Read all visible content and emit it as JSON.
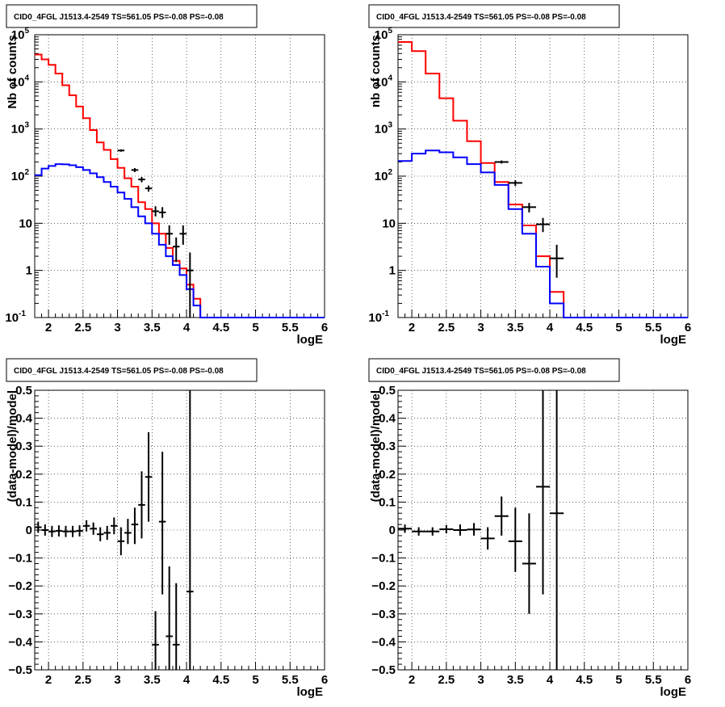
{
  "chart_data": [
    {
      "type": "step-histogram",
      "title": "CID0_4FGL J1513.4-2549 TS=561.05 PS=-0.08 PS=-0.08",
      "xlabel": "logE",
      "ylabel": "Nb of counts",
      "xlim": [
        1.8,
        6
      ],
      "ylim": [
        0.1,
        100000
      ],
      "yscale": "log",
      "grid": true,
      "x_ticks": [
        "2",
        "2.5",
        "3",
        "3.5",
        "4",
        "4.5",
        "5",
        "5.5",
        "6"
      ],
      "y_ticks": [
        {
          "value": 0.1,
          "label": "10",
          "exp": "-1"
        },
        {
          "value": 1,
          "label": "1",
          "exp": ""
        },
        {
          "value": 10,
          "label": "10",
          "exp": ""
        },
        {
          "value": 100,
          "label": "10",
          "exp": "2"
        },
        {
          "value": 1000,
          "label": "10",
          "exp": "3"
        },
        {
          "value": 10000,
          "label": "10",
          "exp": "4"
        },
        {
          "value": 100000,
          "label": "10",
          "exp": "5"
        }
      ],
      "bin_edges": [
        1.8,
        1.9,
        2.0,
        2.1,
        2.2,
        2.3,
        2.4,
        2.5,
        2.6,
        2.7,
        2.8,
        2.9,
        3.0,
        3.1,
        3.2,
        3.3,
        3.4,
        3.5,
        3.6,
        3.7,
        3.8,
        3.9,
        4.0,
        4.1,
        4.2,
        4.3,
        4.4,
        4.5,
        4.6,
        4.7,
        4.8,
        4.9,
        5.0,
        5.1,
        5.2,
        5.3,
        5.4,
        5.5,
        5.6,
        5.7,
        5.8,
        5.9,
        6.0
      ],
      "series": [
        {
          "color": "#ff0000",
          "values": [
            38000,
            30000,
            23000,
            15000,
            8500,
            5200,
            3000,
            1700,
            950,
            520,
            360,
            230,
            150,
            90,
            60,
            28,
            20,
            10,
            6,
            3,
            1.6,
            1.1,
            0.5,
            0.25,
            0.1,
            0.1,
            0.1,
            0.1,
            0.1,
            0.1,
            0.1,
            0.1,
            0.1,
            0.1,
            0.1,
            0.1,
            0.1,
            0.1,
            0.1,
            0.1,
            0.1,
            0.1
          ]
        },
        {
          "color": "#0000ff",
          "values": [
            105,
            145,
            165,
            180,
            178,
            170,
            155,
            135,
            115,
            95,
            75,
            60,
            45,
            33,
            22,
            14,
            10,
            6,
            3.5,
            2,
            1.3,
            0.8,
            0.4,
            0.18,
            0.1,
            0.1,
            0.1,
            0.1,
            0.1,
            0.1,
            0.1,
            0.1,
            0.1,
            0.1,
            0.1,
            0.1,
            0.1,
            0.1,
            0.1,
            0.1,
            0.1,
            0.1
          ]
        }
      ],
      "points": [
        {
          "x": 3.05,
          "xerr": 0.05,
          "y": 350,
          "ylo": 330,
          "yhi": 370
        },
        {
          "x": 3.25,
          "xerr": 0.05,
          "y": 135,
          "ylo": 122,
          "yhi": 148
        },
        {
          "x": 3.35,
          "xerr": 0.05,
          "y": 85,
          "ylo": 74,
          "yhi": 96
        },
        {
          "x": 3.45,
          "xerr": 0.05,
          "y": 55,
          "ylo": 47,
          "yhi": 63
        },
        {
          "x": 3.55,
          "xerr": 0.05,
          "y": 18,
          "ylo": 14,
          "yhi": 23
        },
        {
          "x": 3.65,
          "xerr": 0.05,
          "y": 17,
          "ylo": 13,
          "yhi": 22
        },
        {
          "x": 3.75,
          "xerr": 0.05,
          "y": 6,
          "ylo": 3.5,
          "yhi": 9
        },
        {
          "x": 3.85,
          "xerr": 0.05,
          "y": 3.2,
          "ylo": 1.5,
          "yhi": 5
        },
        {
          "x": 3.95,
          "xerr": 0.05,
          "y": 6,
          "ylo": 3.5,
          "yhi": 9
        },
        {
          "x": 4.05,
          "xerr": 0.05,
          "y": 1,
          "ylo": 0.1,
          "yhi": 2.4
        }
      ]
    },
    {
      "type": "step-histogram",
      "title": "CID0_4FGL J1513.4-2549 TS=561.05 PS=-0.08 PS=-0.08",
      "xlabel": "logE",
      "ylabel": "nb of counts",
      "xlim": [
        1.8,
        6
      ],
      "ylim": [
        0.1,
        100000
      ],
      "yscale": "log",
      "grid": true,
      "x_ticks": [
        "2",
        "2.5",
        "3",
        "3.5",
        "4",
        "4.5",
        "5",
        "5.5",
        "6"
      ],
      "y_ticks": [
        {
          "value": 0.1,
          "label": "10",
          "exp": "-1"
        },
        {
          "value": 1,
          "label": "1",
          "exp": ""
        },
        {
          "value": 10,
          "label": "10",
          "exp": ""
        },
        {
          "value": 100,
          "label": "10",
          "exp": "2"
        },
        {
          "value": 1000,
          "label": "10",
          "exp": "3"
        },
        {
          "value": 10000,
          "label": "10",
          "exp": "4"
        },
        {
          "value": 100000,
          "label": "10",
          "exp": "5"
        }
      ],
      "bin_edges": [
        1.8,
        2.0,
        2.2,
        2.4,
        2.6,
        2.8,
        3.0,
        3.2,
        3.4,
        3.6,
        3.8,
        4.0,
        4.2,
        4.4,
        4.6,
        4.8,
        5.0,
        5.2,
        5.4,
        5.6,
        5.8,
        6.0
      ],
      "series": [
        {
          "color": "#ff0000",
          "values": [
            70000,
            45000,
            15000,
            4500,
            1500,
            550,
            190,
            75,
            25,
            9,
            2,
            0.35,
            0.1,
            0.1,
            0.1,
            0.1,
            0.1,
            0.1,
            0.1,
            0.1,
            0.1
          ]
        },
        {
          "color": "#0000ff",
          "values": [
            210,
            300,
            350,
            320,
            250,
            180,
            120,
            65,
            20,
            6,
            1.2,
            0.2,
            0.1,
            0.1,
            0.1,
            0.1,
            0.1,
            0.1,
            0.1,
            0.1,
            0.1
          ]
        }
      ],
      "points": [
        {
          "x": 3.3,
          "xerr": 0.1,
          "y": 200,
          "ylo": 185,
          "yhi": 215
        },
        {
          "x": 3.5,
          "xerr": 0.1,
          "y": 72,
          "ylo": 62,
          "yhi": 82
        },
        {
          "x": 3.7,
          "xerr": 0.1,
          "y": 22,
          "ylo": 17,
          "yhi": 27
        },
        {
          "x": 3.9,
          "xerr": 0.1,
          "y": 9.5,
          "ylo": 6.5,
          "yhi": 13
        },
        {
          "x": 4.1,
          "xerr": 0.1,
          "y": 1.8,
          "ylo": 0.7,
          "yhi": 3.5
        }
      ]
    },
    {
      "type": "scatter",
      "title": "CID0_4FGL J1513.4-2549 TS=561.05 PS=-0.08 PS=-0.08",
      "xlabel": "logE",
      "ylabel": "(data-model)/model",
      "xlim": [
        1.8,
        6
      ],
      "ylim": [
        -0.5,
        0.5
      ],
      "yscale": "linear",
      "grid": true,
      "x_ticks": [
        "2",
        "2.5",
        "3",
        "3.5",
        "4",
        "4.5",
        "5",
        "5.5",
        "6"
      ],
      "y_ticks": [
        {
          "value": -0.5,
          "label": "−0.5",
          "exp": ""
        },
        {
          "value": -0.4,
          "label": "−0.4",
          "exp": ""
        },
        {
          "value": -0.3,
          "label": "−0.3",
          "exp": ""
        },
        {
          "value": -0.2,
          "label": "−0.2",
          "exp": ""
        },
        {
          "value": -0.1,
          "label": "−0.1",
          "exp": ""
        },
        {
          "value": 0,
          "label": "0",
          "exp": ""
        },
        {
          "value": 0.1,
          "label": "0.1",
          "exp": ""
        },
        {
          "value": 0.2,
          "label": "0.2",
          "exp": ""
        },
        {
          "value": 0.3,
          "label": "0.3",
          "exp": ""
        },
        {
          "value": 0.4,
          "label": "0.4",
          "exp": ""
        },
        {
          "value": 0.5,
          "label": "0.5",
          "exp": ""
        }
      ],
      "points": [
        {
          "x": 1.85,
          "xerr": 0.05,
          "y": 0.01,
          "ylo": -0.01,
          "yhi": 0.03
        },
        {
          "x": 1.95,
          "xerr": 0.05,
          "y": 0.0,
          "ylo": -0.02,
          "yhi": 0.02
        },
        {
          "x": 2.05,
          "xerr": 0.05,
          "y": -0.005,
          "ylo": -0.025,
          "yhi": 0.015
        },
        {
          "x": 2.15,
          "xerr": 0.05,
          "y": -0.003,
          "ylo": -0.023,
          "yhi": 0.017
        },
        {
          "x": 2.25,
          "xerr": 0.05,
          "y": -0.005,
          "ylo": -0.025,
          "yhi": 0.015
        },
        {
          "x": 2.35,
          "xerr": 0.05,
          "y": -0.005,
          "ylo": -0.025,
          "yhi": 0.015
        },
        {
          "x": 2.45,
          "xerr": 0.05,
          "y": -0.003,
          "ylo": -0.023,
          "yhi": 0.017
        },
        {
          "x": 2.55,
          "xerr": 0.05,
          "y": 0.015,
          "ylo": -0.005,
          "yhi": 0.035
        },
        {
          "x": 2.65,
          "xerr": 0.05,
          "y": 0.005,
          "ylo": -0.017,
          "yhi": 0.027
        },
        {
          "x": 2.75,
          "xerr": 0.05,
          "y": -0.015,
          "ylo": -0.04,
          "yhi": 0.01
        },
        {
          "x": 2.85,
          "xerr": 0.05,
          "y": -0.01,
          "ylo": -0.035,
          "yhi": 0.015
        },
        {
          "x": 2.95,
          "xerr": 0.05,
          "y": 0.015,
          "ylo": -0.015,
          "yhi": 0.045
        },
        {
          "x": 3.05,
          "xerr": 0.05,
          "y": -0.04,
          "ylo": -0.09,
          "yhi": 0.01
        },
        {
          "x": 3.15,
          "xerr": 0.05,
          "y": -0.01,
          "ylo": -0.05,
          "yhi": 0.04
        },
        {
          "x": 3.25,
          "xerr": 0.05,
          "y": 0.02,
          "ylo": -0.05,
          "yhi": 0.08
        },
        {
          "x": 3.35,
          "xerr": 0.05,
          "y": 0.09,
          "ylo": -0.03,
          "yhi": 0.21
        },
        {
          "x": 3.45,
          "xerr": 0.05,
          "y": 0.19,
          "ylo": 0.03,
          "yhi": 0.35
        },
        {
          "x": 3.55,
          "xerr": 0.05,
          "y": -0.41,
          "ylo": -0.5,
          "yhi": -0.29
        },
        {
          "x": 3.65,
          "xerr": 0.05,
          "y": 0.03,
          "ylo": -0.23,
          "yhi": 0.28
        },
        {
          "x": 3.75,
          "xerr": 0.05,
          "y": -0.38,
          "ylo": -0.5,
          "yhi": -0.13
        },
        {
          "x": 3.85,
          "xerr": 0.05,
          "y": -0.41,
          "ylo": -0.5,
          "yhi": -0.19
        },
        {
          "x": 4.05,
          "xerr": 0.05,
          "y": -0.22,
          "ylo": -0.5,
          "yhi": 0.5
        }
      ]
    },
    {
      "type": "scatter",
      "title": "CID0_4FGL J1513.4-2549 TS=561.05 PS=-0.08 PS=-0.08",
      "xlabel": "logE",
      "ylabel": "(data-model)/model",
      "xlim": [
        1.8,
        6
      ],
      "ylim": [
        -0.5,
        0.5
      ],
      "yscale": "linear",
      "grid": true,
      "x_ticks": [
        "2",
        "2.5",
        "3",
        "3.5",
        "4",
        "4.5",
        "5",
        "5.5",
        "6"
      ],
      "y_ticks": [
        {
          "value": -0.5,
          "label": "−0.5",
          "exp": ""
        },
        {
          "value": -0.4,
          "label": "−0.4",
          "exp": ""
        },
        {
          "value": -0.3,
          "label": "−0.3",
          "exp": ""
        },
        {
          "value": -0.2,
          "label": "−0.2",
          "exp": ""
        },
        {
          "value": -0.1,
          "label": "−0.1",
          "exp": ""
        },
        {
          "value": 0,
          "label": "0",
          "exp": ""
        },
        {
          "value": 0.1,
          "label": "0.1",
          "exp": ""
        },
        {
          "value": 0.2,
          "label": "0.2",
          "exp": ""
        },
        {
          "value": 0.3,
          "label": "0.3",
          "exp": ""
        },
        {
          "value": 0.4,
          "label": "0.4",
          "exp": ""
        },
        {
          "value": 0.5,
          "label": "0.5",
          "exp": ""
        }
      ],
      "points": [
        {
          "x": 1.9,
          "xerr": 0.1,
          "y": 0.005,
          "ylo": -0.01,
          "yhi": 0.02
        },
        {
          "x": 2.1,
          "xerr": 0.1,
          "y": -0.005,
          "ylo": -0.02,
          "yhi": 0.01
        },
        {
          "x": 2.3,
          "xerr": 0.1,
          "y": -0.005,
          "ylo": -0.02,
          "yhi": 0.01
        },
        {
          "x": 2.5,
          "xerr": 0.1,
          "y": 0.003,
          "ylo": -0.012,
          "yhi": 0.018
        },
        {
          "x": 2.7,
          "xerr": 0.1,
          "y": 0.0,
          "ylo": -0.02,
          "yhi": 0.02
        },
        {
          "x": 2.9,
          "xerr": 0.1,
          "y": 0.002,
          "ylo": -0.02,
          "yhi": 0.025
        },
        {
          "x": 3.1,
          "xerr": 0.1,
          "y": -0.03,
          "ylo": -0.07,
          "yhi": 0.01
        },
        {
          "x": 3.3,
          "xerr": 0.1,
          "y": 0.05,
          "ylo": -0.02,
          "yhi": 0.12
        },
        {
          "x": 3.5,
          "xerr": 0.1,
          "y": -0.04,
          "ylo": -0.15,
          "yhi": 0.08
        },
        {
          "x": 3.7,
          "xerr": 0.1,
          "y": -0.12,
          "ylo": -0.3,
          "yhi": 0.06
        },
        {
          "x": 3.9,
          "xerr": 0.1,
          "y": 0.155,
          "ylo": -0.23,
          "yhi": 0.5
        },
        {
          "x": 4.1,
          "xerr": 0.1,
          "y": 0.06,
          "ylo": -0.5,
          "yhi": 0.5
        }
      ]
    }
  ]
}
